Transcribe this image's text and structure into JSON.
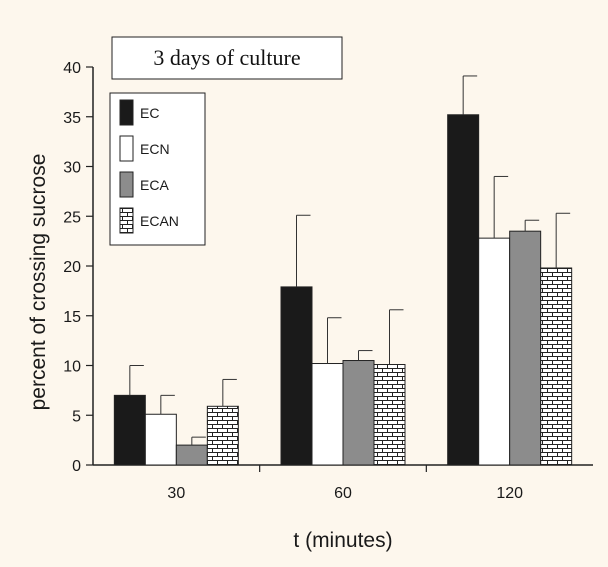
{
  "chart_data": {
    "type": "bar",
    "title": "3 days of culture",
    "xlabel": "t (minutes)",
    "ylabel": "percent of crossing sucrose",
    "categories": [
      "30",
      "60",
      "120"
    ],
    "ylim": [
      0,
      40
    ],
    "yticks": [
      0,
      5,
      10,
      15,
      20,
      25,
      30,
      35,
      40
    ],
    "grid": false,
    "legend_position": "top-left",
    "series": [
      {
        "name": "EC",
        "values": [
          7.0,
          17.9,
          35.2
        ],
        "errors": [
          3.0,
          7.2,
          3.9
        ],
        "fill": "#1a1a1a",
        "pattern": "solid"
      },
      {
        "name": "ECN",
        "values": [
          5.1,
          10.2,
          22.8
        ],
        "errors": [
          1.9,
          4.6,
          6.2
        ],
        "fill": "#ffffff",
        "pattern": "solid"
      },
      {
        "name": "ECA",
        "values": [
          2.0,
          10.5,
          23.5
        ],
        "errors": [
          0.8,
          1.0,
          1.1
        ],
        "fill": "#8c8c8c",
        "pattern": "solid"
      },
      {
        "name": "ECAN",
        "values": [
          5.9,
          10.1,
          19.8
        ],
        "errors": [
          2.7,
          5.5,
          5.5
        ],
        "fill": "#ffffff",
        "pattern": "brick"
      }
    ]
  }
}
